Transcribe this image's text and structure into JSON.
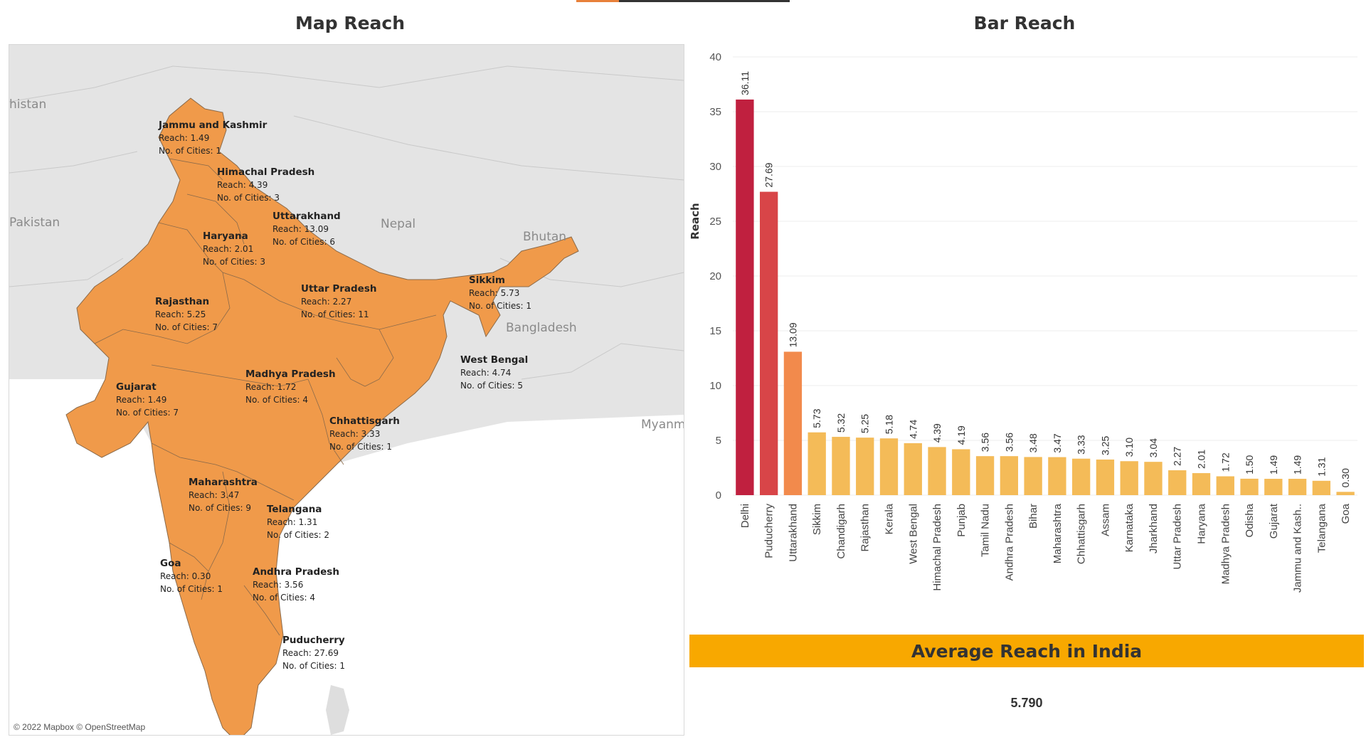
{
  "top_strip_colors": {
    "accent": "#e8803a",
    "rest": "#333333"
  },
  "map": {
    "title": "Map Reach",
    "attribution": "© 2022 Mapbox © OpenStreetMap",
    "fill_color": "#f09a4a",
    "country_labels": [
      "histan",
      "Pakistan",
      "Nepal",
      "Bhutan",
      "Bangladesh",
      "Myanma"
    ],
    "reach_prefix": "Reach: ",
    "cities_prefix": "No. of Cities: ",
    "states": [
      {
        "name": "Jammu and Kashmir",
        "reach": "1.49",
        "cities": "1"
      },
      {
        "name": "Himachal Pradesh",
        "reach": "4.39",
        "cities": "3"
      },
      {
        "name": "Uttarakhand",
        "reach": "13.09",
        "cities": "6"
      },
      {
        "name": "Haryana",
        "reach": "2.01",
        "cities": "3"
      },
      {
        "name": "Sikkim",
        "reach": "5.73",
        "cities": "1"
      },
      {
        "name": "Uttar Pradesh",
        "reach": "2.27",
        "cities": "11"
      },
      {
        "name": "Rajasthan",
        "reach": "5.25",
        "cities": "7"
      },
      {
        "name": "West Bengal",
        "reach": "4.74",
        "cities": "5"
      },
      {
        "name": "Madhya Pradesh",
        "reach": "1.72",
        "cities": "4"
      },
      {
        "name": "Gujarat",
        "reach": "1.49",
        "cities": "7"
      },
      {
        "name": "Chhattisgarh",
        "reach": "3.33",
        "cities": "1"
      },
      {
        "name": "Maharashtra",
        "reach": "3.47",
        "cities": "9"
      },
      {
        "name": "Telangana",
        "reach": "1.31",
        "cities": "2"
      },
      {
        "name": "Goa",
        "reach": "0.30",
        "cities": "1"
      },
      {
        "name": "Andhra Pradesh",
        "reach": "3.56",
        "cities": "4"
      },
      {
        "name": "Puducherry",
        "reach": "27.69",
        "cities": "1"
      }
    ]
  },
  "chart_data": {
    "type": "bar",
    "title": "Bar Reach",
    "ylabel": "Reach",
    "ylim": [
      0,
      40
    ],
    "yticks": [
      0,
      5,
      10,
      15,
      20,
      25,
      30,
      35,
      40
    ],
    "grid": true,
    "categories": [
      "Delhi",
      "Puducherry",
      "Uttarakhand",
      "Sikkim",
      "Chandigarh",
      "Rajasthan",
      "Kerala",
      "West Bengal",
      "Himachal Pradesh",
      "Punjab",
      "Tamil Nadu",
      "Andhra Pradesh",
      "Bihar",
      "Maharashtra",
      "Chhattisgarh",
      "Assam",
      "Karnataka",
      "Jharkhand",
      "Uttar Pradesh",
      "Haryana",
      "Madhya Pradesh",
      "Odisha",
      "Gujarat",
      "Jammu and Kash..",
      "Telangana",
      "Goa"
    ],
    "values": [
      36.11,
      27.69,
      13.09,
      5.73,
      5.32,
      5.25,
      5.18,
      4.74,
      4.39,
      4.19,
      3.56,
      3.56,
      3.48,
      3.47,
      3.33,
      3.25,
      3.1,
      3.04,
      2.27,
      2.01,
      1.72,
      1.5,
      1.49,
      1.49,
      1.31,
      0.3
    ],
    "value_labels": [
      "36.11",
      "27.69",
      "13.09",
      "5.73",
      "5.32",
      "5.25",
      "5.18",
      "4.74",
      "4.39",
      "4.19",
      "3.56",
      "3.56",
      "3.48",
      "3.47",
      "3.33",
      "3.25",
      "3.10",
      "3.04",
      "2.27",
      "2.01",
      "1.72",
      "1.50",
      "1.49",
      "1.49",
      "1.31",
      "0.30"
    ],
    "bar_colors": [
      "#c0203f",
      "#d84548",
      "#f28a4c",
      "#f4bb58",
      "#f4bb58",
      "#f4bb58",
      "#f4bb58",
      "#f4bb58",
      "#f4bb58",
      "#f4bb58",
      "#f4bb58",
      "#f4bb58",
      "#f4bb58",
      "#f4bb58",
      "#f4bb58",
      "#f4bb58",
      "#f4bb58",
      "#f4bb58",
      "#f4bb58",
      "#f4bb58",
      "#f4bb58",
      "#f4bb58",
      "#f4bb58",
      "#f4bb58",
      "#f4bb58",
      "#f4bb58"
    ]
  },
  "average": {
    "banner_label": "Average Reach in India",
    "banner_color": "#f8a800",
    "value": "5.790"
  }
}
